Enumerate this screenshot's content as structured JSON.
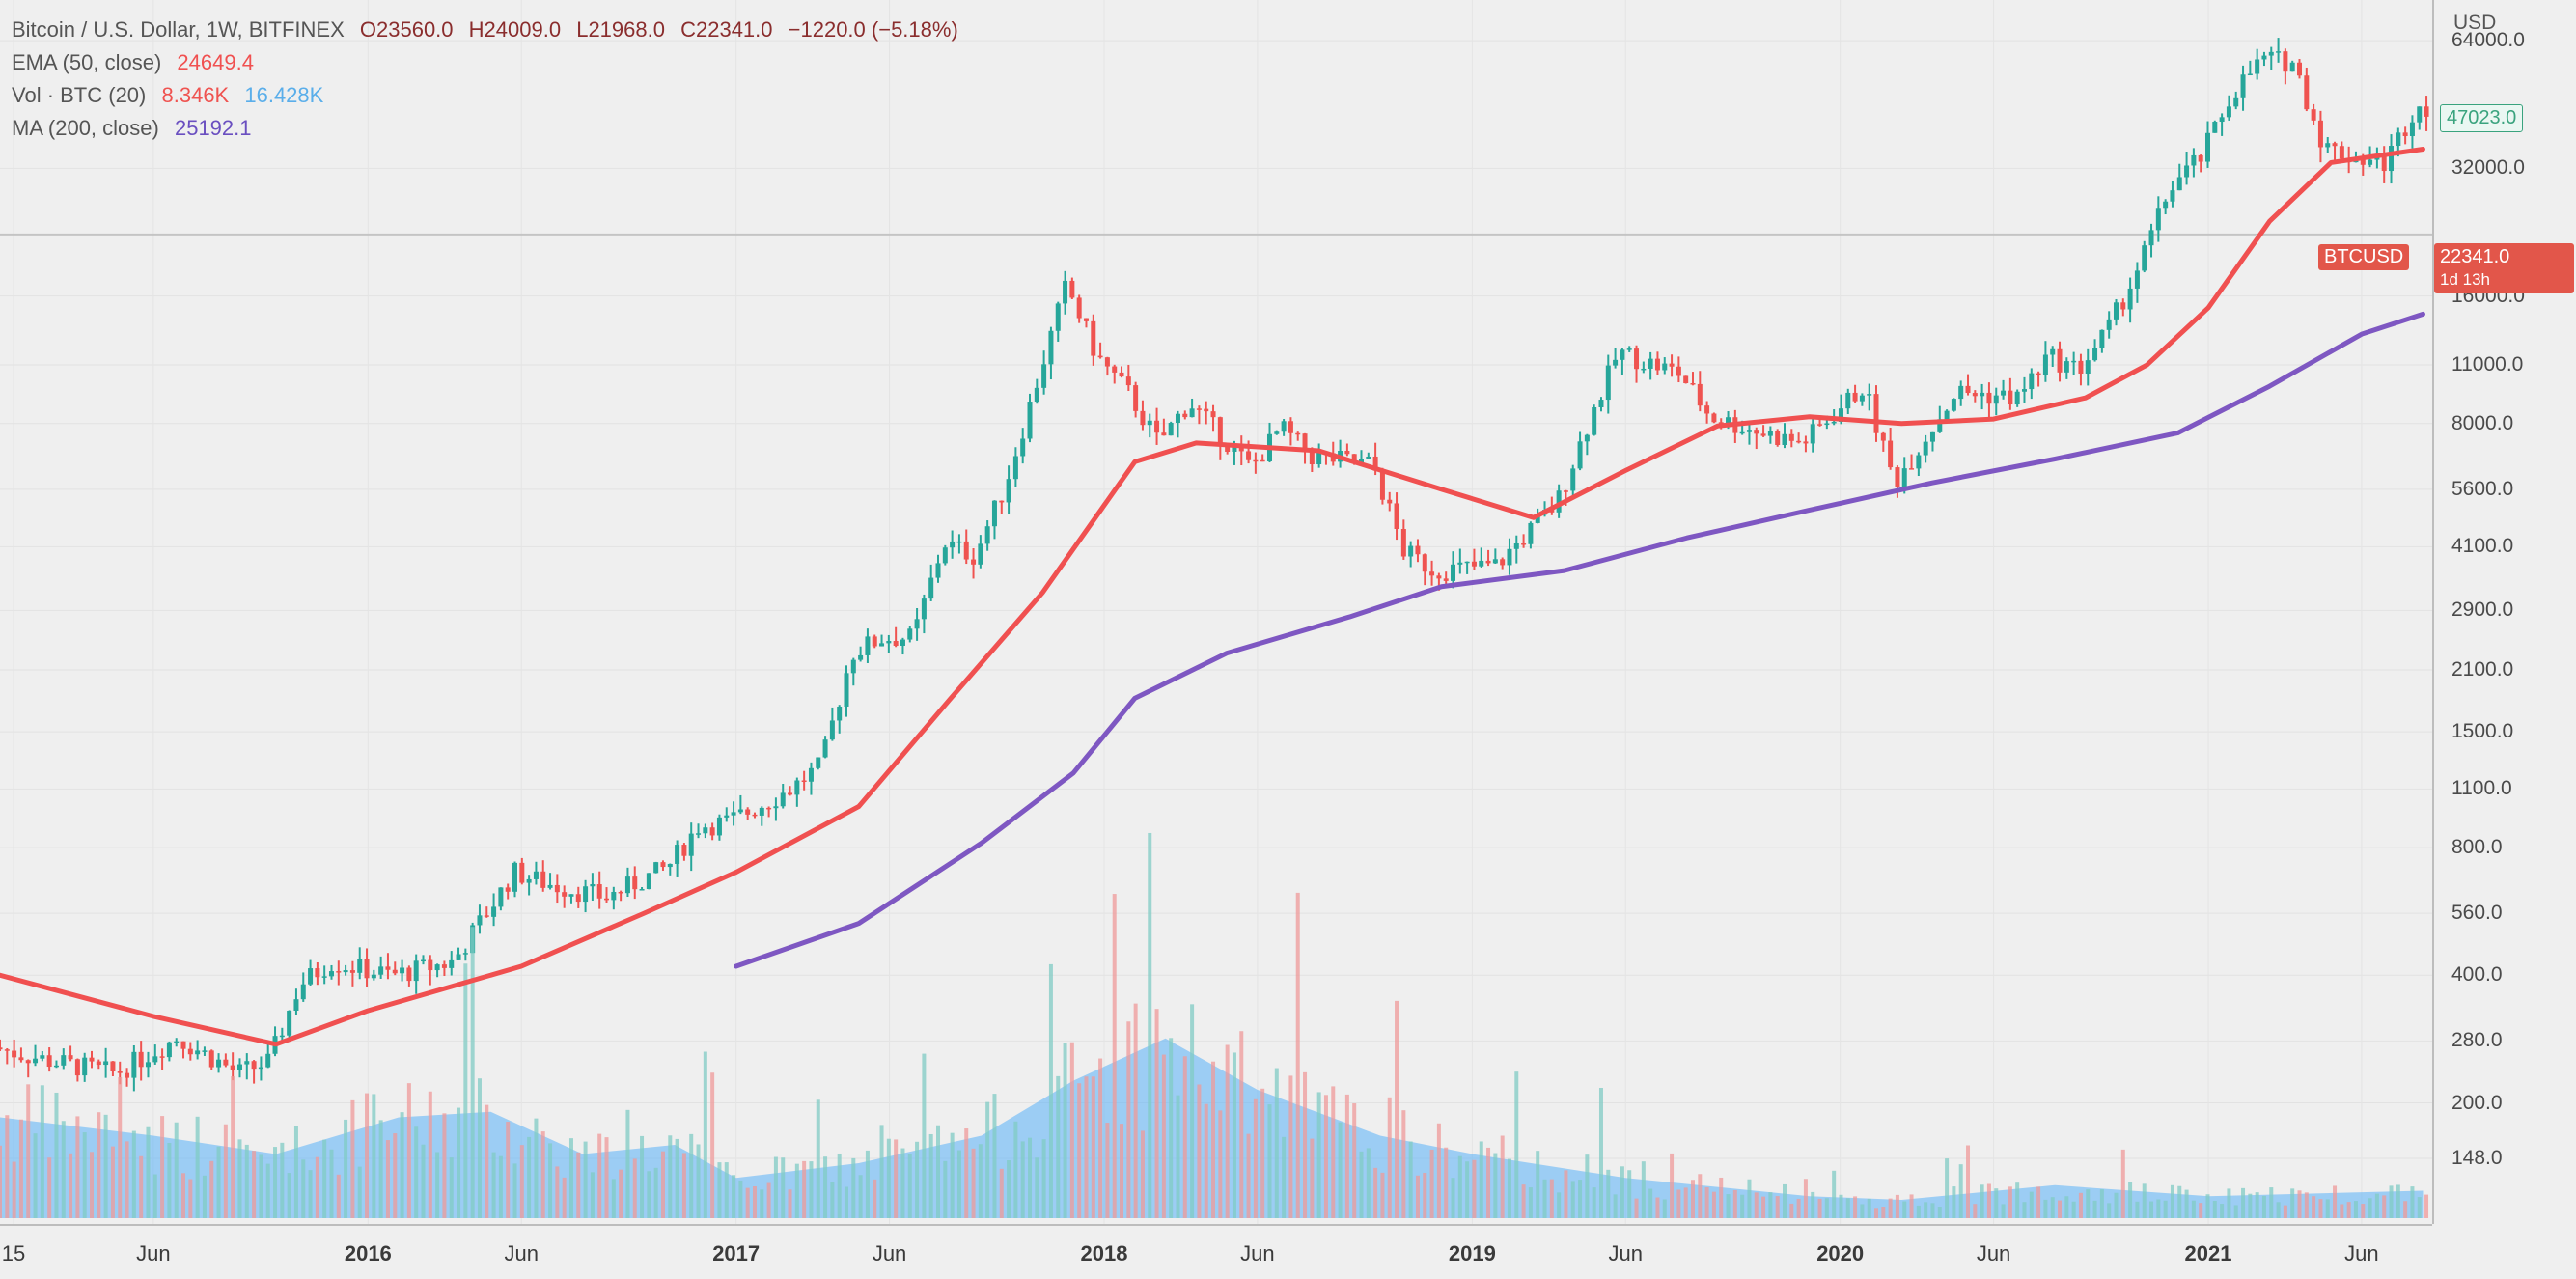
{
  "header": {
    "symbol": "Bitcoin / U.S. Dollar, 1W, BITFINEX",
    "open": "O23560.0",
    "high": "H24009.0",
    "low": "L21968.0",
    "close": "C22341.0",
    "change": "−1220.0 (−5.18%)"
  },
  "indicators": {
    "ema_label": "EMA (50, close)",
    "ema_value": "24649.4",
    "vol_label": "Vol · BTC (20)",
    "vol_value": "8.346K",
    "vol_ma_value": "16.428K",
    "ma_label": "MA (200, close)",
    "ma_value": "25192.1"
  },
  "price_axis": {
    "unit": "USD",
    "ticks": [
      "64000.0",
      "32000.0",
      "16000.0",
      "11000.0",
      "8000.0",
      "5600.0",
      "4100.0",
      "2900.0",
      "2100.0",
      "1500.0",
      "1100.0",
      "800.0",
      "560.0",
      "400.0",
      "280.0",
      "200.0",
      "148.0"
    ],
    "current_price_tag": "22341.0",
    "countdown_tag": "1d 13h",
    "symbol_tag": "BTCUSD",
    "last_high_tag": "47023.0"
  },
  "time_axis": {
    "labels": [
      "15",
      "Jun",
      "2016",
      "Jun",
      "2017",
      "Jun",
      "2018",
      "Jun",
      "2019",
      "Jun",
      "2020",
      "Jun",
      "2021",
      "Jun"
    ]
  },
  "colors": {
    "up": "#26a69a",
    "down": "#ef5350",
    "ema": "#f05050",
    "ma": "#7e57c2",
    "volume_ma": "#64b5f6",
    "background": "#efefef"
  },
  "chart_data": {
    "type": "candlestick",
    "scale": "log",
    "title": "Bitcoin / U.S. Dollar, 1W, BITFINEX",
    "ylabel": "USD",
    "ylim": [
      120,
      70000
    ],
    "xlim": [
      "2015-01",
      "2021-08"
    ],
    "price_path": [
      [
        "2015-01",
        270
      ],
      [
        "2015-03",
        250
      ],
      [
        "2015-05",
        235
      ],
      [
        "2015-07",
        285
      ],
      [
        "2015-09",
        235
      ],
      [
        "2015-10",
        250
      ],
      [
        "2015-11",
        380
      ],
      [
        "2015-12",
        430
      ],
      [
        "2016-02",
        400
      ],
      [
        "2016-04",
        430
      ],
      [
        "2016-06",
        700
      ],
      [
        "2016-07",
        660
      ],
      [
        "2016-09",
        610
      ],
      [
        "2016-11",
        720
      ],
      [
        "2016-12",
        900
      ],
      [
        "2017-01",
        920
      ],
      [
        "2017-03",
        1100
      ],
      [
        "2017-04",
        1250
      ],
      [
        "2017-05",
        2300
      ],
      [
        "2017-06",
        2500
      ],
      [
        "2017-07",
        2500
      ],
      [
        "2017-08",
        4200
      ],
      [
        "2017-09",
        3900
      ],
      [
        "2017-10",
        5700
      ],
      [
        "2017-11",
        9800
      ],
      [
        "2017-12",
        17000
      ],
      [
        "2018-01",
        11500
      ],
      [
        "2018-02",
        9500
      ],
      [
        "2018-03",
        7200
      ],
      [
        "2018-04",
        9000
      ],
      [
        "2018-06",
        6300
      ],
      [
        "2018-07",
        7800
      ],
      [
        "2018-08",
        6700
      ],
      [
        "2018-10",
        6400
      ],
      [
        "2018-11",
        4000
      ],
      [
        "2018-12",
        3600
      ],
      [
        "2019-02",
        3700
      ],
      [
        "2019-04",
        5200
      ],
      [
        "2019-05",
        8000
      ],
      [
        "2019-06",
        11800
      ],
      [
        "2019-08",
        10500
      ],
      [
        "2019-09",
        8300
      ],
      [
        "2019-11",
        7500
      ],
      [
        "2019-12",
        7200
      ],
      [
        "2020-02",
        9800
      ],
      [
        "2020-03",
        5800
      ],
      [
        "2020-05",
        9500
      ],
      [
        "2020-07",
        9200
      ],
      [
        "2020-08",
        11500
      ],
      [
        "2020-09",
        10700
      ],
      [
        "2020-10",
        13500
      ],
      [
        "2020-11",
        19000
      ],
      [
        "2020-12",
        29000
      ],
      [
        "2021-01",
        34000
      ],
      [
        "2021-02",
        48000
      ],
      [
        "2021-03",
        58000
      ],
      [
        "2021-04",
        57000
      ],
      [
        "2021-05",
        36000
      ],
      [
        "2021-06",
        34000
      ],
      [
        "2021-07",
        33000
      ],
      [
        "2021-08",
        45000
      ]
    ],
    "series": [
      {
        "name": "EMA (50, close)",
        "points": [
          [
            "2015-01",
            400
          ],
          [
            "2015-06",
            320
          ],
          [
            "2015-10",
            275
          ],
          [
            "2016-01",
            330
          ],
          [
            "2016-06",
            420
          ],
          [
            "2016-10",
            560
          ],
          [
            "2017-01",
            700
          ],
          [
            "2017-05",
            1000
          ],
          [
            "2017-08",
            1800
          ],
          [
            "2017-11",
            3200
          ],
          [
            "2018-02",
            6500
          ],
          [
            "2018-04",
            7200
          ],
          [
            "2018-08",
            6900
          ],
          [
            "2018-12",
            5600
          ],
          [
            "2019-03",
            4800
          ],
          [
            "2019-06",
            6200
          ],
          [
            "2019-09",
            7900
          ],
          [
            "2019-12",
            8300
          ],
          [
            "2020-03",
            8000
          ],
          [
            "2020-06",
            8200
          ],
          [
            "2020-09",
            9200
          ],
          [
            "2020-11",
            11000
          ],
          [
            "2021-01",
            15000
          ],
          [
            "2021-03",
            24000
          ],
          [
            "2021-05",
            33000
          ],
          [
            "2021-08",
            35500
          ]
        ]
      },
      {
        "name": "MA (200, close)",
        "points": [
          [
            "2017-01",
            420
          ],
          [
            "2017-05",
            530
          ],
          [
            "2017-09",
            820
          ],
          [
            "2017-12",
            1200
          ],
          [
            "2018-02",
            1800
          ],
          [
            "2018-05",
            2300
          ],
          [
            "2018-09",
            2800
          ],
          [
            "2018-12",
            3300
          ],
          [
            "2019-04",
            3600
          ],
          [
            "2019-08",
            4300
          ],
          [
            "2019-12",
            5000
          ],
          [
            "2020-04",
            5800
          ],
          [
            "2020-08",
            6600
          ],
          [
            "2020-12",
            7600
          ],
          [
            "2021-03",
            9800
          ],
          [
            "2021-06",
            13000
          ],
          [
            "2021-08",
            14500
          ]
        ]
      }
    ],
    "volume_ma_profile": [
      [
        "2015-01",
        0.55
      ],
      [
        "2015-06",
        0.45
      ],
      [
        "2015-10",
        0.35
      ],
      [
        "2016-02",
        0.55
      ],
      [
        "2016-05",
        0.58
      ],
      [
        "2016-08",
        0.35
      ],
      [
        "2016-11",
        0.4
      ],
      [
        "2017-01",
        0.22
      ],
      [
        "2017-05",
        0.3
      ],
      [
        "2017-09",
        0.45
      ],
      [
        "2017-12",
        0.75
      ],
      [
        "2018-03",
        0.98
      ],
      [
        "2018-06",
        0.7
      ],
      [
        "2018-10",
        0.45
      ],
      [
        "2019-01",
        0.35
      ],
      [
        "2019-06",
        0.22
      ],
      [
        "2019-12",
        0.12
      ],
      [
        "2020-03",
        0.1
      ],
      [
        "2020-08",
        0.18
      ],
      [
        "2021-01",
        0.12
      ],
      [
        "2021-08",
        0.15
      ]
    ]
  }
}
